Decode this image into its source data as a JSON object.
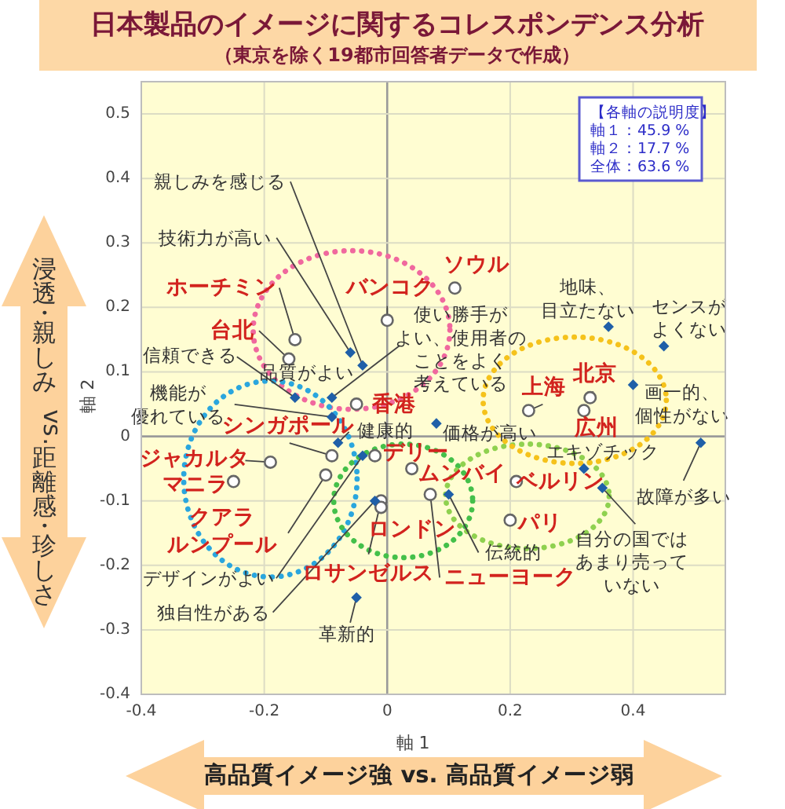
{
  "chart_data": {
    "type": "scatter",
    "title": "日本製品のイメージに関するコレスポンデンス分析",
    "subtitle": "（東京を除く19都市回答者データで作成）",
    "xlabel": "軸 1",
    "ylabel": "軸 2",
    "xlim": [
      -0.4,
      0.55
    ],
    "ylim": [
      -0.4,
      0.55
    ],
    "xticks": [
      -0.4,
      -0.2,
      0,
      0.2,
      0.4
    ],
    "yticks": [
      -0.4,
      -0.3,
      -0.2,
      -0.1,
      0,
      0.1,
      0.2,
      0.3,
      0.4,
      0.5
    ],
    "grid": true,
    "series": [
      {
        "color": "#666666",
        "marker": "circle",
        "x": [
          -0.15,
          -0.16,
          0.0,
          0.11,
          -0.05,
          -0.09,
          -0.19,
          -0.25,
          -0.1,
          -0.02,
          0.04,
          -0.01,
          -0.01,
          0.07,
          0.21,
          0.2,
          0.23,
          0.33,
          0.32
        ],
        "values": [
          0.15,
          0.12,
          0.18,
          0.23,
          0.05,
          -0.03,
          -0.04,
          -0.07,
          -0.06,
          -0.03,
          -0.05,
          -0.1,
          -0.11,
          -0.09,
          -0.07,
          -0.13,
          0.04,
          0.06,
          0.04
        ]
      },
      {
        "color": "#1f5fa8",
        "marker": "diamond",
        "x": [
          -0.04,
          -0.06,
          -0.15,
          -0.09,
          -0.09,
          -0.08,
          -0.04,
          -0.02,
          -0.05,
          0.08,
          0.1,
          0.32,
          0.35,
          0.51,
          0.4,
          0.45,
          0.36
        ],
        "values": [
          0.11,
          0.13,
          0.06,
          0.06,
          0.03,
          -0.01,
          -0.03,
          -0.1,
          -0.25,
          0.02,
          -0.09,
          -0.05,
          -0.08,
          -0.01,
          0.08,
          0.14,
          0.17
        ]
      }
    ],
    "annotations": [
      {
        "text": "ホーチミン",
        "x": -0.15,
        "y": 0.15
      },
      {
        "text": "台北",
        "x": -0.16,
        "y": 0.12
      },
      {
        "text": "バンコク",
        "x": 0.0,
        "y": 0.18
      },
      {
        "text": "ソウル",
        "x": 0.11,
        "y": 0.23
      },
      {
        "text": "香港",
        "x": -0.05,
        "y": 0.05
      },
      {
        "text": "シンガポール",
        "x": -0.09,
        "y": -0.03
      },
      {
        "text": "ジャカルタ",
        "x": -0.19,
        "y": -0.04
      },
      {
        "text": "マニラ",
        "x": -0.25,
        "y": -0.07
      },
      {
        "text": "クアラルンプール",
        "x": -0.1,
        "y": -0.06
      },
      {
        "text": "デリー",
        "x": -0.02,
        "y": -0.03
      },
      {
        "text": "ムンバイ",
        "x": 0.04,
        "y": -0.05
      },
      {
        "text": "ロサンゼルス",
        "x": -0.01,
        "y": -0.1
      },
      {
        "text": "ロンドン",
        "x": -0.01,
        "y": -0.11
      },
      {
        "text": "ニューヨーク",
        "x": 0.07,
        "y": -0.09
      },
      {
        "text": "ベルリン",
        "x": 0.21,
        "y": -0.07
      },
      {
        "text": "パリ",
        "x": 0.2,
        "y": -0.13
      },
      {
        "text": "上海",
        "x": 0.23,
        "y": 0.04
      },
      {
        "text": "北京",
        "x": 0.33,
        "y": 0.06
      },
      {
        "text": "広州",
        "x": 0.32,
        "y": 0.04
      },
      {
        "text": "親しみを感じる",
        "x": -0.04,
        "y": 0.11
      },
      {
        "text": "技術力が高い",
        "x": -0.06,
        "y": 0.13
      },
      {
        "text": "信頼できる",
        "x": -0.15,
        "y": 0.06
      },
      {
        "text": "品質がよい",
        "x": -0.09,
        "y": 0.06
      },
      {
        "text": "使い勝手がよい、使用者のことをよく考えている",
        "x": -0.09,
        "y": 0.06
      },
      {
        "text": "機能が優れている",
        "x": -0.09,
        "y": 0.03
      },
      {
        "text": "健康的",
        "x": -0.08,
        "y": -0.01
      },
      {
        "text": "デザインがよい",
        "x": -0.04,
        "y": -0.03
      },
      {
        "text": "独自性がある",
        "x": -0.02,
        "y": -0.1
      },
      {
        "text": "革新的",
        "x": -0.05,
        "y": -0.25
      },
      {
        "text": "価格が高い",
        "x": 0.08,
        "y": 0.02
      },
      {
        "text": "伝統的",
        "x": 0.1,
        "y": -0.09
      },
      {
        "text": "エキゾチック",
        "x": 0.32,
        "y": -0.05
      },
      {
        "text": "自分の国ではあまり売っていない",
        "x": 0.35,
        "y": -0.08
      },
      {
        "text": "故障が多い",
        "x": 0.51,
        "y": -0.01
      },
      {
        "text": "画一的、個性がない",
        "x": 0.4,
        "y": 0.08
      },
      {
        "text": "センスがよくない",
        "x": 0.45,
        "y": 0.14
      },
      {
        "text": "地味、目立たない",
        "x": 0.36,
        "y": 0.17
      },
      "【各軸の説明度】",
      "軸１：45.9 %",
      "軸２：17.7 %",
      "全体：63.6 %",
      "高品質イメージ強 vs. 高品質イメージ弱",
      "浸透・親しみ vs. 距離感・珍しさ"
    ]
  }
}
